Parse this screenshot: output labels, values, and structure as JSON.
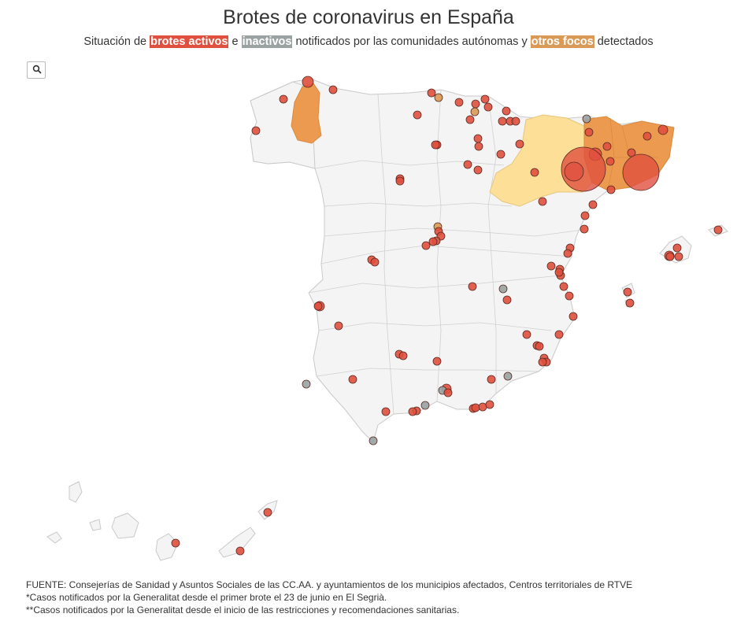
{
  "title": "Brotes de coronavirus en España",
  "subtitle": {
    "part1": "Situación de ",
    "active": "brotes activos",
    "part2": " e ",
    "inactive": "inactivos",
    "part3": " notificados por las comunidades autónomas y ",
    "other": "otros focos",
    "part4": " detectados"
  },
  "legend_colors": {
    "active": "#e0503e",
    "inactive": "#9aa3a2",
    "other_focus": "#d89a56",
    "region_orange": "#ec9a4f",
    "region_yellow": "#fddf98",
    "map_fill": "#f4f4f4",
    "map_border": "#c9c9c9"
  },
  "controls": {
    "search_icon": "search-icon"
  },
  "footer": {
    "line1": "FUENTE: Consejerías de Sanidad y Asuntos Sociales de las CC.AA. y ayuntamientos de los municipios afectados, Centros territoriales de RTVE",
    "line2": "*Casos notificados por la Generalitat desde el primer brote el 23 de junio en El Segrià.",
    "line3": "**Casos notificados por la Generalitat desde el inicio de las restricciones y recomendaciones sanitarias."
  }
}
